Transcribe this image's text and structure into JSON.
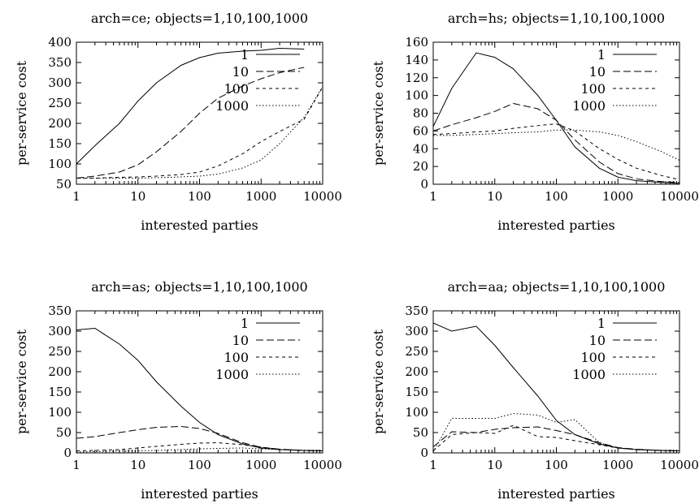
{
  "chart_data": [
    {
      "type": "line",
      "title": "arch=ce; objects=1,10,100,1000",
      "xlabel": "interested parties",
      "ylabel": "per-service cost",
      "xscale": "log",
      "xlim": [
        1,
        10000
      ],
      "ylim": [
        50,
        400
      ],
      "xticks": [
        "1",
        "10",
        "100",
        "1000",
        "10000"
      ],
      "yticks": [
        "50",
        "100",
        "150",
        "200",
        "250",
        "300",
        "350",
        "400"
      ],
      "legend_position": "top-right",
      "series": [
        {
          "name": "1",
          "dash": "solid",
          "points": [
            [
              1,
              100
            ],
            [
              2,
              145
            ],
            [
              5,
              200
            ],
            [
              10,
              255
            ],
            [
              20,
              300
            ],
            [
              50,
              343
            ],
            [
              100,
              362
            ],
            [
              200,
              373
            ],
            [
              500,
              378
            ],
            [
              1000,
              380
            ],
            [
              2000,
              385
            ],
            [
              5000,
              383
            ]
          ]
        },
        {
          "name": "10",
          "dash": "dashed",
          "points": [
            [
              1,
              65
            ],
            [
              2,
              70
            ],
            [
              5,
              80
            ],
            [
              10,
              98
            ],
            [
              20,
              130
            ],
            [
              50,
              180
            ],
            [
              100,
              225
            ],
            [
              200,
              262
            ],
            [
              500,
              292
            ],
            [
              1000,
              310
            ],
            [
              2000,
              325
            ],
            [
              5000,
              338
            ]
          ]
        },
        {
          "name": "100",
          "dash": "short-dashed",
          "points": [
            [
              1,
              65
            ],
            [
              2,
              65
            ],
            [
              5,
              67
            ],
            [
              10,
              68
            ],
            [
              20,
              70
            ],
            [
              50,
              74
            ],
            [
              100,
              80
            ],
            [
              200,
              95
            ],
            [
              500,
              125
            ],
            [
              1000,
              155
            ],
            [
              2000,
              180
            ],
            [
              5000,
              210
            ],
            [
              10000,
              290
            ]
          ]
        },
        {
          "name": "1000",
          "dash": "dotted",
          "points": [
            [
              1,
              65
            ],
            [
              2,
              65
            ],
            [
              5,
              65
            ],
            [
              10,
              65
            ],
            [
              20,
              66
            ],
            [
              50,
              68
            ],
            [
              100,
              70
            ],
            [
              200,
              75
            ],
            [
              500,
              90
            ],
            [
              1000,
              110
            ],
            [
              2000,
              150
            ],
            [
              5000,
              215
            ],
            [
              10000,
              290
            ]
          ]
        }
      ]
    },
    {
      "type": "line",
      "title": "arch=hs; objects=1,10,100,1000",
      "xlabel": "interested parties",
      "ylabel": "per-service cost",
      "xscale": "log",
      "xlim": [
        1,
        10000
      ],
      "ylim": [
        0,
        160
      ],
      "xticks": [
        "1",
        "10",
        "100",
        "1000",
        "10000"
      ],
      "yticks": [
        "0",
        "20",
        "40",
        "60",
        "80",
        "100",
        "120",
        "140",
        "160"
      ],
      "legend_position": "top-right",
      "series": [
        {
          "name": "1",
          "dash": "solid",
          "points": [
            [
              1,
              65
            ],
            [
              2,
              108
            ],
            [
              5,
              148
            ],
            [
              10,
              143
            ],
            [
              20,
              130
            ],
            [
              50,
              100
            ],
            [
              100,
              72
            ],
            [
              200,
              42
            ],
            [
              500,
              18
            ],
            [
              1000,
              8
            ],
            [
              2000,
              4
            ],
            [
              5000,
              2
            ],
            [
              10000,
              1
            ]
          ]
        },
        {
          "name": "10",
          "dash": "dashed",
          "points": [
            [
              1,
              60
            ],
            [
              2,
              67
            ],
            [
              5,
              75
            ],
            [
              10,
              82
            ],
            [
              20,
              91
            ],
            [
              50,
              85
            ],
            [
              100,
              72
            ],
            [
              200,
              50
            ],
            [
              500,
              25
            ],
            [
              1000,
              12
            ],
            [
              2000,
              6
            ],
            [
              5000,
              3
            ],
            [
              10000,
              2
            ]
          ]
        },
        {
          "name": "100",
          "dash": "short-dashed",
          "points": [
            [
              1,
              56
            ],
            [
              2,
              57
            ],
            [
              5,
              59
            ],
            [
              10,
              60
            ],
            [
              20,
              63
            ],
            [
              50,
              66
            ],
            [
              100,
              68
            ],
            [
              200,
              60
            ],
            [
              500,
              40
            ],
            [
              1000,
              28
            ],
            [
              2000,
              18
            ],
            [
              5000,
              10
            ],
            [
              10000,
              5
            ]
          ]
        },
        {
          "name": "1000",
          "dash": "dotted",
          "points": [
            [
              1,
              55
            ],
            [
              2,
              55
            ],
            [
              5,
              56
            ],
            [
              10,
              57
            ],
            [
              20,
              58
            ],
            [
              50,
              59
            ],
            [
              100,
              61
            ],
            [
              200,
              61
            ],
            [
              500,
              59
            ],
            [
              1000,
              55
            ],
            [
              2000,
              48
            ],
            [
              5000,
              37
            ],
            [
              10000,
              27
            ]
          ]
        }
      ]
    },
    {
      "type": "line",
      "title": "arch=as; objects=1,10,100,1000",
      "xlabel": "interested parties",
      "ylabel": "per-service cost",
      "xscale": "log",
      "xlim": [
        1,
        10000
      ],
      "ylim": [
        0,
        350
      ],
      "xticks": [
        "1",
        "10",
        "100",
        "1000",
        "10000"
      ],
      "yticks": [
        "0",
        "50",
        "100",
        "150",
        "200",
        "250",
        "300",
        "350"
      ],
      "legend_position": "top-right",
      "series": [
        {
          "name": "1",
          "dash": "solid",
          "points": [
            [
              1,
              303
            ],
            [
              2,
              307
            ],
            [
              5,
              268
            ],
            [
              10,
              228
            ],
            [
              20,
              175
            ],
            [
              50,
              115
            ],
            [
              100,
              75
            ],
            [
              200,
              45
            ],
            [
              500,
              22
            ],
            [
              1000,
              12
            ],
            [
              2000,
              8
            ],
            [
              5000,
              6
            ],
            [
              10000,
              5
            ]
          ]
        },
        {
          "name": "10",
          "dash": "dashed",
          "points": [
            [
              1,
              36
            ],
            [
              2,
              40
            ],
            [
              5,
              50
            ],
            [
              10,
              57
            ],
            [
              20,
              63
            ],
            [
              50,
              65
            ],
            [
              100,
              60
            ],
            [
              200,
              48
            ],
            [
              500,
              25
            ],
            [
              1000,
              14
            ],
            [
              2000,
              9
            ],
            [
              5000,
              6
            ],
            [
              10000,
              5
            ]
          ]
        },
        {
          "name": "100",
          "dash": "short-dashed",
          "points": [
            [
              1,
              5
            ],
            [
              2,
              6
            ],
            [
              5,
              8
            ],
            [
              10,
              12
            ],
            [
              20,
              16
            ],
            [
              50,
              21
            ],
            [
              100,
              24
            ],
            [
              200,
              25
            ],
            [
              500,
              20
            ],
            [
              1000,
              14
            ],
            [
              2000,
              9
            ],
            [
              5000,
              6
            ],
            [
              10000,
              5
            ]
          ]
        },
        {
          "name": "1000",
          "dash": "dotted",
          "points": [
            [
              1,
              2
            ],
            [
              2,
              3
            ],
            [
              5,
              4
            ],
            [
              10,
              5
            ],
            [
              20,
              6
            ],
            [
              50,
              8
            ],
            [
              100,
              10
            ],
            [
              200,
              11
            ],
            [
              500,
              12
            ],
            [
              1000,
              10
            ],
            [
              2000,
              8
            ],
            [
              5000,
              6
            ],
            [
              10000,
              5
            ]
          ]
        }
      ]
    },
    {
      "type": "line",
      "title": "arch=aa; objects=1,10,100,1000",
      "xlabel": "interested parties",
      "ylabel": "per-service cost",
      "xscale": "log",
      "xlim": [
        1,
        10000
      ],
      "ylim": [
        0,
        350
      ],
      "xticks": [
        "1",
        "10",
        "100",
        "1000",
        "10000"
      ],
      "yticks": [
        "0",
        "50",
        "100",
        "150",
        "200",
        "250",
        "300",
        "350"
      ],
      "legend_position": "top-right",
      "series": [
        {
          "name": "1",
          "dash": "solid",
          "points": [
            [
              1,
              320
            ],
            [
              2,
              300
            ],
            [
              5,
              312
            ],
            [
              10,
              265
            ],
            [
              20,
              210
            ],
            [
              50,
              140
            ],
            [
              100,
              80
            ],
            [
              200,
              45
            ],
            [
              500,
              22
            ],
            [
              1000,
              12
            ],
            [
              2000,
              8
            ],
            [
              5000,
              6
            ],
            [
              10000,
              5
            ]
          ]
        },
        {
          "name": "10",
          "dash": "dashed",
          "points": [
            [
              1,
              15
            ],
            [
              2,
              52
            ],
            [
              5,
              50
            ],
            [
              10,
              58
            ],
            [
              20,
              62
            ],
            [
              50,
              64
            ],
            [
              100,
              55
            ],
            [
              200,
              45
            ],
            [
              500,
              25
            ],
            [
              1000,
              13
            ],
            [
              2000,
              9
            ],
            [
              5000,
              6
            ],
            [
              10000,
              5
            ]
          ]
        },
        {
          "name": "100",
          "dash": "short-dashed",
          "points": [
            [
              1,
              5
            ],
            [
              2,
              45
            ],
            [
              5,
              50
            ],
            [
              10,
              48
            ],
            [
              20,
              68
            ],
            [
              50,
              40
            ],
            [
              100,
              38
            ],
            [
              200,
              30
            ],
            [
              500,
              20
            ],
            [
              1000,
              12
            ],
            [
              2000,
              8
            ],
            [
              5000,
              6
            ],
            [
              10000,
              5
            ]
          ]
        },
        {
          "name": "1000",
          "dash": "dotted",
          "points": [
            [
              1,
              2
            ],
            [
              2,
              85
            ],
            [
              5,
              85
            ],
            [
              10,
              85
            ],
            [
              20,
              97
            ],
            [
              50,
              93
            ],
            [
              100,
              75
            ],
            [
              200,
              82
            ],
            [
              500,
              25
            ],
            [
              1000,
              12
            ],
            [
              2000,
              8
            ],
            [
              5000,
              6
            ],
            [
              10000,
              5
            ]
          ]
        }
      ]
    }
  ]
}
